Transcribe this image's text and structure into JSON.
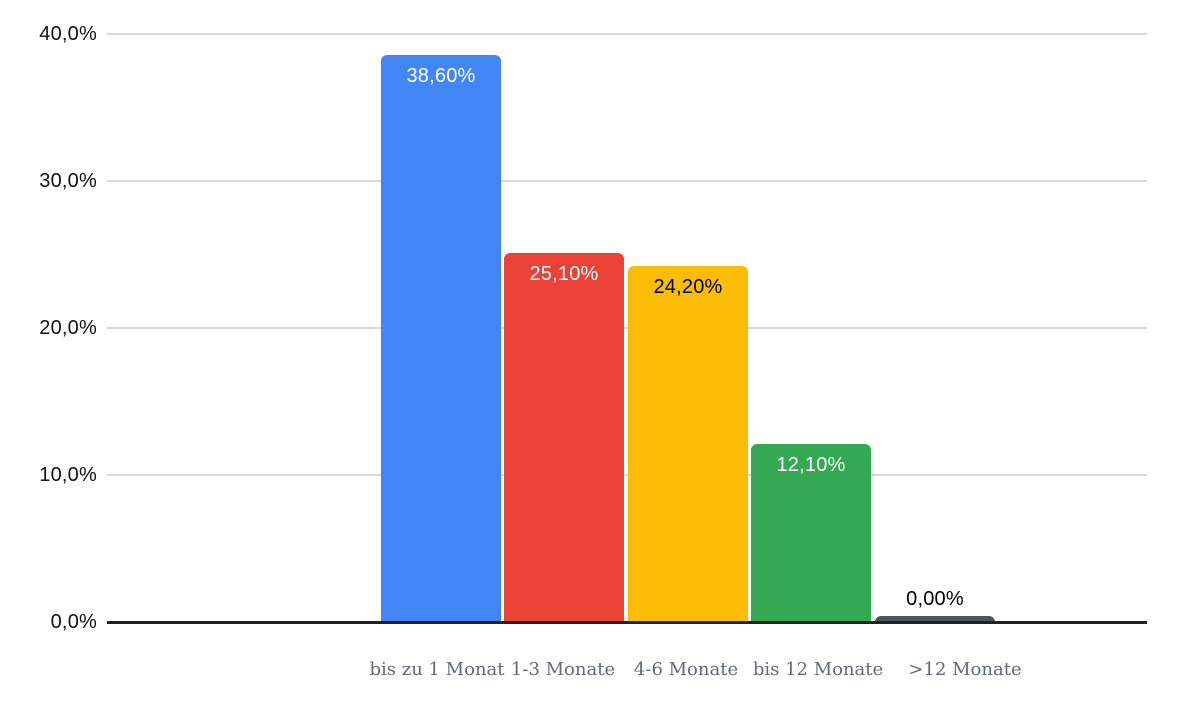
{
  "chart_data": {
    "type": "bar",
    "title": "",
    "xlabel": "",
    "ylabel": "",
    "categories": [
      "bis zu 1 Monat",
      "1-3 Monate",
      "4-6 Monate",
      "bis 12 Monate",
      ">12 Monate"
    ],
    "values": [
      38.6,
      25.1,
      24.2,
      12.1,
      0.0
    ],
    "value_labels": [
      "38,60%",
      "25,10%",
      "24,20%",
      "12,10%",
      "0,00%"
    ],
    "bar_colors": [
      "#4285F4",
      "#EA4335",
      "#FBBC04",
      "#34A853",
      "#4D545C"
    ],
    "value_label_colors": [
      "#FFFFFF",
      "#FFFFFF",
      "#000000",
      "#FFFFFF",
      "#000000"
    ],
    "value_label_placement": [
      "inside",
      "inside",
      "inside",
      "inside",
      "above"
    ],
    "ylim": [
      0,
      40
    ],
    "yticks": [
      0,
      10,
      20,
      30,
      40
    ],
    "ytick_labels": [
      "0,0%",
      "10,0%",
      "20,0%",
      "30,0%",
      "40,0%"
    ],
    "grid": true,
    "legend": false,
    "grid_color": "#D9D9D9",
    "axis_color": "#212121",
    "ytick_label_color": "#111111",
    "xtick_label_color": "#5F6B77",
    "background_color": "#FFFFFF"
  }
}
